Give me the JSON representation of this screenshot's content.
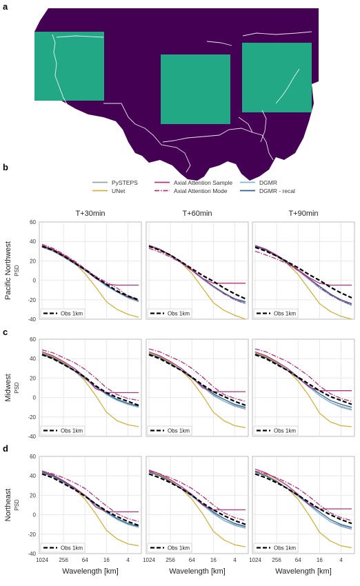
{
  "panel_labels": {
    "a": "a",
    "b": "b",
    "c": "c",
    "d": "d"
  },
  "map": {
    "colors": {
      "background": "#440154",
      "region": "#22a884",
      "borders": "#ffffff"
    }
  },
  "legend": {
    "items": [
      {
        "label": "PySTEPS",
        "color": "#9aa0a8",
        "dash": "solid"
      },
      {
        "label": "UNet",
        "color": "#d4b13a",
        "dash": "solid"
      },
      {
        "label": "Axial Attention Sample",
        "color": "#b5317a",
        "dash": "solid"
      },
      {
        "label": "Axial Attention Mode",
        "color": "#b5317a",
        "dash": "dashdot"
      },
      {
        "label": "DGMR",
        "color": "#7fb6d9",
        "dash": "solid"
      },
      {
        "label": "DGMR - recal",
        "color": "#2e5e8e",
        "dash": "solid"
      }
    ],
    "obs_label": "Obs 1km",
    "obs_color": "#000000"
  },
  "chart_data": {
    "type": "line",
    "column_titles": [
      "T+30min",
      "T+60min",
      "T+90min"
    ],
    "row_titles": [
      "Pacific Northwest",
      "Midwest",
      "Northeast"
    ],
    "xlabel": "Wavelength [km]",
    "ylabel": "PSD",
    "x_ticks": [
      "1024",
      "256",
      "64",
      "16",
      "4"
    ],
    "x": [
      1024,
      512,
      256,
      128,
      64,
      32,
      16,
      8,
      4,
      2
    ],
    "ylim": [
      -40,
      60
    ],
    "y_ticks": [
      -40,
      -20,
      0,
      20,
      40,
      60
    ],
    "x_scale": "log (reversed)",
    "grid": true,
    "legend_position": "lower-left",
    "panels": [
      [
        {
          "series": {
            "PySTEPS": [
              34,
              30,
              24,
              17,
              10,
              3,
              -5,
              -12,
              -18,
              -22
            ],
            "UNet": [
              35,
              31,
              25,
              18,
              7,
              -7,
              -22,
              -30,
              -35,
              -38
            ],
            "Axial Attention Sample": [
              36,
              32,
              26,
              19,
              11,
              2,
              -4,
              -5,
              -5,
              -5
            ],
            "Axial Attention Mode": [
              37,
              33,
              27,
              20,
              12,
              4,
              -2,
              -8,
              -16,
              -20
            ],
            "DGMR": [
              35,
              31,
              25,
              18,
              10,
              2,
              -6,
              -12,
              -17,
              -21
            ],
            "DGMR - recal": [
              35,
              31,
              25,
              18,
              11,
              3,
              -5,
              -12,
              -17,
              -21
            ],
            "Obs 1km": [
              35,
              31,
              25,
              18,
              11,
              3,
              -4,
              -11,
              -16,
              -20
            ]
          }
        },
        {
          "series": {
            "PySTEPS": [
              35,
              31,
              25,
              18,
              10,
              2,
              -6,
              -13,
              -20,
              -24
            ],
            "UNet": [
              36,
              32,
              26,
              18,
              7,
              -8,
              -23,
              -31,
              -36,
              -40
            ],
            "Axial Attention Sample": [
              36,
              32,
              26,
              19,
              11,
              2,
              -3,
              -3,
              -3,
              -3
            ],
            "Axial Attention Mode": [
              33,
              29,
              24,
              18,
              10,
              2,
              -6,
              -14,
              -20,
              -24
            ],
            "DGMR": [
              36,
              32,
              26,
              18,
              10,
              1,
              -7,
              -14,
              -19,
              -23
            ],
            "DGMR - recal": [
              36,
              32,
              26,
              19,
              11,
              2,
              -6,
              -13,
              -19,
              -22
            ],
            "Obs 1km": [
              35,
              31,
              26,
              19,
              12,
              5,
              -1,
              -8,
              -14,
              -19
            ]
          }
        },
        {
          "series": {
            "PySTEPS": [
              35,
              31,
              25,
              18,
              10,
              2,
              -6,
              -14,
              -21,
              -25
            ],
            "UNet": [
              35,
              31,
              25,
              17,
              6,
              -9,
              -24,
              -32,
              -37,
              -40
            ],
            "Axial Attention Sample": [
              36,
              32,
              26,
              19,
              11,
              3,
              -3,
              -5,
              -5,
              -5
            ],
            "Axial Attention Mode": [
              30,
              26,
              22,
              17,
              10,
              2,
              -7,
              -15,
              -21,
              -25
            ],
            "DGMR": [
              35,
              31,
              25,
              18,
              10,
              1,
              -8,
              -15,
              -21,
              -26
            ],
            "DGMR - recal": [
              35,
              31,
              25,
              18,
              11,
              2,
              -6,
              -14,
              -20,
              -24
            ],
            "Obs 1km": [
              34,
              30,
              25,
              19,
              13,
              6,
              0,
              -7,
              -13,
              -18
            ]
          }
        }
      ],
      [
        {
          "series": {
            "PySTEPS": [
              44,
              40,
              34,
              27,
              19,
              11,
              3,
              -3,
              -7,
              -10
            ],
            "UNet": [
              46,
              42,
              36,
              28,
              17,
              2,
              -15,
              -24,
              -28,
              -30
            ],
            "Axial Attention Sample": [
              47,
              43,
              37,
              30,
              21,
              9,
              5,
              5,
              5,
              5
            ],
            "Axial Attention Mode": [
              49,
              46,
              41,
              36,
              29,
              20,
              10,
              3,
              -1,
              -3
            ],
            "DGMR": [
              45,
              41,
              35,
              28,
              20,
              11,
              3,
              -3,
              -7,
              -10
            ],
            "DGMR - recal": [
              45,
              41,
              35,
              28,
              20,
              11,
              4,
              -2,
              -6,
              -9
            ],
            "Obs 1km": [
              44,
              40,
              34,
              28,
              21,
              12,
              5,
              0,
              -4,
              -8
            ]
          }
        },
        {
          "series": {
            "PySTEPS": [
              45,
              41,
              35,
              28,
              20,
              11,
              2,
              -4,
              -9,
              -12
            ],
            "UNet": [
              46,
              42,
              36,
              28,
              17,
              2,
              -15,
              -24,
              -29,
              -31
            ],
            "Axial Attention Sample": [
              47,
              43,
              37,
              30,
              21,
              10,
              6,
              6,
              6,
              6
            ],
            "Axial Attention Mode": [
              50,
              47,
              42,
              37,
              30,
              21,
              11,
              3,
              -1,
              -4
            ],
            "DGMR": [
              45,
              41,
              35,
              28,
              20,
              11,
              3,
              -4,
              -8,
              -11
            ],
            "DGMR - recal": [
              45,
              41,
              35,
              28,
              20,
              12,
              4,
              -2,
              -7,
              -10
            ],
            "Obs 1km": [
              44,
              40,
              34,
              28,
              21,
              13,
              6,
              1,
              -4,
              -8
            ]
          }
        },
        {
          "series": {
            "PySTEPS": [
              45,
              41,
              35,
              28,
              20,
              11,
              2,
              -5,
              -10,
              -13
            ],
            "UNet": [
              46,
              42,
              36,
              28,
              17,
              2,
              -16,
              -25,
              -29,
              -30
            ],
            "Axial Attention Sample": [
              47,
              43,
              37,
              30,
              21,
              11,
              7,
              7,
              7,
              7
            ],
            "Axial Attention Mode": [
              50,
              47,
              42,
              37,
              30,
              22,
              12,
              4,
              -1,
              -4
            ],
            "DGMR": [
              45,
              41,
              35,
              28,
              20,
              11,
              2,
              -5,
              -9,
              -12
            ],
            "DGMR - recal": [
              45,
              41,
              35,
              28,
              20,
              12,
              4,
              -3,
              -7,
              -10
            ],
            "Obs 1km": [
              44,
              40,
              34,
              28,
              21,
              14,
              7,
              1,
              -3,
              -7
            ]
          }
        }
      ],
      [
        {
          "series": {
            "PySTEPS": [
              43,
              39,
              33,
              26,
              19,
              10,
              2,
              -5,
              -10,
              -13
            ],
            "UNet": [
              44,
              40,
              34,
              27,
              16,
              1,
              -16,
              -25,
              -30,
              -32
            ],
            "Axial Attention Sample": [
              45,
              41,
              35,
              28,
              20,
              8,
              3,
              3,
              3,
              3
            ],
            "Axial Attention Mode": [
              45,
              42,
              38,
              33,
              27,
              18,
              9,
              1,
              -4,
              -7
            ],
            "DGMR": [
              44,
              40,
              34,
              27,
              19,
              10,
              2,
              -5,
              -10,
              -13
            ],
            "DGMR - recal": [
              44,
              40,
              34,
              27,
              20,
              11,
              3,
              -4,
              -9,
              -12
            ],
            "Obs 1km": [
              42,
              38,
              32,
              26,
              19,
              11,
              4,
              -2,
              -7,
              -11
            ]
          }
        },
        {
          "series": {
            "PySTEPS": [
              44,
              40,
              34,
              27,
              19,
              10,
              2,
              -6,
              -11,
              -14
            ],
            "UNet": [
              45,
              41,
              35,
              27,
              16,
              1,
              -17,
              -26,
              -31,
              -33
            ],
            "Axial Attention Sample": [
              46,
              42,
              36,
              29,
              21,
              10,
              5,
              5,
              5,
              5
            ],
            "Axial Attention Mode": [
              45,
              42,
              38,
              33,
              27,
              19,
              10,
              2,
              -3,
              -6
            ],
            "DGMR": [
              44,
              40,
              34,
              27,
              19,
              10,
              1,
              -6,
              -10,
              -13
            ],
            "DGMR - recal": [
              44,
              40,
              34,
              27,
              20,
              11,
              3,
              -4,
              -9,
              -12
            ],
            "Obs 1km": [
              42,
              38,
              33,
              27,
              20,
              12,
              5,
              -1,
              -6,
              -10
            ]
          }
        },
        {
          "series": {
            "PySTEPS": [
              44,
              40,
              34,
              27,
              19,
              10,
              1,
              -7,
              -12,
              -15
            ],
            "UNet": [
              45,
              41,
              35,
              27,
              16,
              0,
              -18,
              -27,
              -32,
              -34
            ],
            "Axial Attention Sample": [
              47,
              43,
              37,
              30,
              21,
              11,
              6,
              6,
              6,
              6
            ],
            "Axial Attention Mode": [
              45,
              42,
              38,
              33,
              27,
              19,
              10,
              2,
              -3,
              -6
            ],
            "DGMR": [
              44,
              40,
              34,
              27,
              19,
              10,
              1,
              -7,
              -11,
              -14
            ],
            "DGMR - recal": [
              44,
              40,
              34,
              27,
              20,
              11,
              3,
              -5,
              -10,
              -13
            ],
            "Obs 1km": [
              42,
              38,
              33,
              27,
              20,
              13,
              6,
              0,
              -5,
              -9
            ]
          }
        }
      ]
    ]
  }
}
